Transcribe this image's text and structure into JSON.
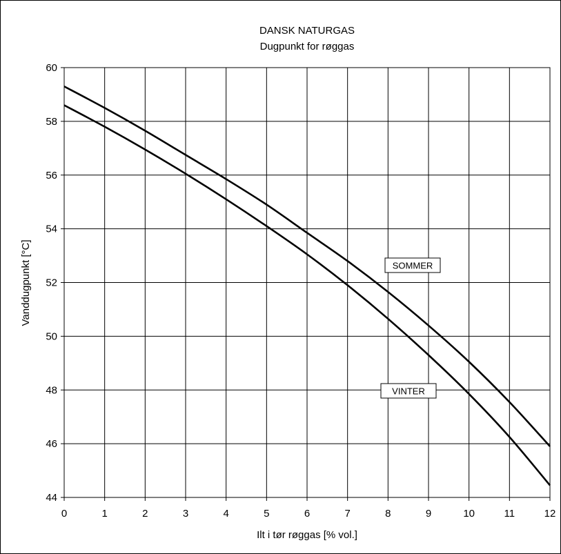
{
  "chart_data": {
    "type": "line",
    "title": "DANSK  NATURGAS",
    "subtitle": "Dugpunkt for røggas",
    "xlabel": "Ilt i tør røggas [% vol.]",
    "ylabel": "Vanddugpunkt [°C]",
    "xlim": [
      0,
      12
    ],
    "ylim": [
      44,
      60
    ],
    "xticks": [
      0,
      1,
      2,
      3,
      4,
      5,
      6,
      7,
      8,
      9,
      10,
      11,
      12
    ],
    "yticks": [
      44,
      46,
      48,
      50,
      52,
      54,
      56,
      58,
      60
    ],
    "grid": true,
    "series": [
      {
        "name": "SOMMER",
        "x": [
          0,
          1,
          2,
          3,
          4,
          5,
          6,
          7,
          8,
          9,
          10,
          11,
          12
        ],
        "y": [
          59.3,
          58.5,
          57.65,
          56.75,
          55.85,
          54.9,
          53.85,
          52.8,
          51.65,
          50.4,
          49.05,
          47.55,
          45.9
        ]
      },
      {
        "name": "VINTER",
        "x": [
          0,
          1,
          2,
          3,
          4,
          5,
          6,
          7,
          8,
          9,
          10,
          11,
          12
        ],
        "y": [
          58.6,
          57.8,
          56.95,
          56.05,
          55.1,
          54.1,
          53.05,
          51.9,
          50.65,
          49.3,
          47.85,
          46.25,
          44.45
        ]
      }
    ]
  }
}
